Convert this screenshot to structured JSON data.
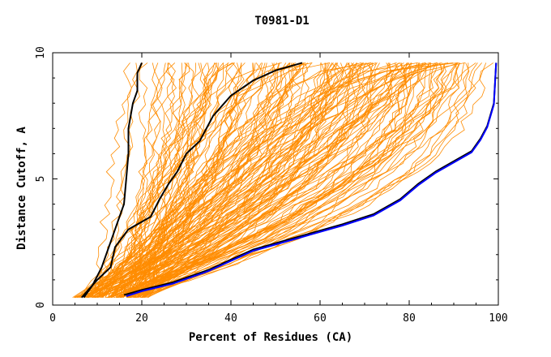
{
  "chart_data": {
    "type": "line",
    "title": "T0981-D1",
    "xlabel": "Percent of Residues (CA)",
    "ylabel": "Distance Cutoff, A",
    "xlim": [
      0,
      100
    ],
    "ylim": [
      0,
      10
    ],
    "xticks": [
      0,
      20,
      40,
      60,
      80,
      100
    ],
    "yticks": [
      0,
      5,
      10
    ],
    "grid": false,
    "legend": "none",
    "colors": {
      "background_models": "#ff8c00",
      "highlight_black": "#000000",
      "highlight_blue": "#0000ff"
    },
    "series": [
      {
        "color": "#000000",
        "x": [
          7,
          9,
          11,
          12,
          13,
          14,
          15,
          16,
          16.5,
          17,
          17,
          18,
          19,
          19,
          20
        ],
        "y": [
          0.3,
          0.8,
          1.5,
          2,
          2.5,
          3,
          3.5,
          4,
          5,
          6,
          7,
          8,
          8.5,
          9.2,
          9.6
        ]
      },
      {
        "color": "#000000",
        "x": [
          6.5,
          8,
          10,
          13,
          14,
          17,
          22,
          24,
          26,
          28,
          30,
          33,
          36,
          40,
          45,
          50,
          56
        ],
        "y": [
          0.3,
          0.6,
          1,
          1.5,
          2.3,
          3,
          3.5,
          4.2,
          4.8,
          5.3,
          6,
          6.5,
          7.5,
          8.3,
          8.9,
          9.3,
          9.6
        ]
      },
      {
        "color": "#000000",
        "x": [
          16,
          20,
          27,
          35,
          45,
          55,
          65,
          72,
          78,
          82,
          86,
          90,
          94,
          96,
          97.5,
          99,
          99.5
        ],
        "y": [
          0.4,
          0.6,
          0.9,
          1.4,
          2.2,
          2.7,
          3.2,
          3.6,
          4.2,
          4.8,
          5.3,
          5.7,
          6.1,
          6.6,
          7.1,
          8,
          9.6
        ]
      },
      {
        "color": "#0000ff",
        "x": [
          16.5,
          20,
          27,
          35,
          45,
          55,
          65,
          72,
          78,
          82,
          86,
          90,
          94,
          96,
          97.5,
          99,
          99.5
        ],
        "y": [
          0.35,
          0.55,
          0.85,
          1.35,
          2.15,
          2.65,
          3.15,
          3.55,
          4.15,
          4.75,
          5.25,
          5.65,
          6.05,
          6.55,
          7.05,
          7.95,
          9.6
        ]
      }
    ]
  }
}
